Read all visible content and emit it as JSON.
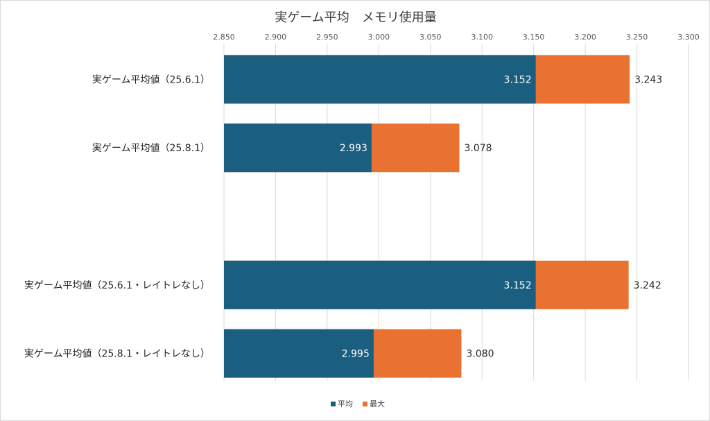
{
  "chart_data": {
    "type": "bar",
    "orientation": "horizontal",
    "stacked": "overlay",
    "title": "実ゲーム平均　メモリ使用量",
    "xlim": [
      2.85,
      3.3
    ],
    "xticks": [
      "2.850",
      "2.900",
      "2.950",
      "3.000",
      "3.050",
      "3.100",
      "3.150",
      "3.200",
      "3.250",
      "3.300"
    ],
    "xtick_values": [
      2.85,
      2.9,
      2.95,
      3.0,
      3.05,
      3.1,
      3.15,
      3.2,
      3.25,
      3.3
    ],
    "grid": true,
    "legend_position": "bottom",
    "categories": [
      "実ゲーム平均値（25.6.1）",
      "実ゲーム平均値（25.8.1）",
      "",
      "実ゲーム平均値（25.6.1・レイトレなし）",
      "実ゲーム平均値（25.8.1・レイトレなし）"
    ],
    "series": [
      {
        "name": "平均",
        "color": "#1b5f80",
        "values": [
          3.152,
          2.993,
          null,
          3.152,
          2.995
        ],
        "labels": [
          "3.152",
          "2.993",
          "",
          "3.152",
          "2.995"
        ]
      },
      {
        "name": "最大",
        "color": "#e97132",
        "values": [
          3.243,
          3.078,
          null,
          3.242,
          3.08
        ],
        "labels": [
          "3.243",
          "3.078",
          "",
          "3.242",
          "3.080"
        ]
      }
    ]
  }
}
